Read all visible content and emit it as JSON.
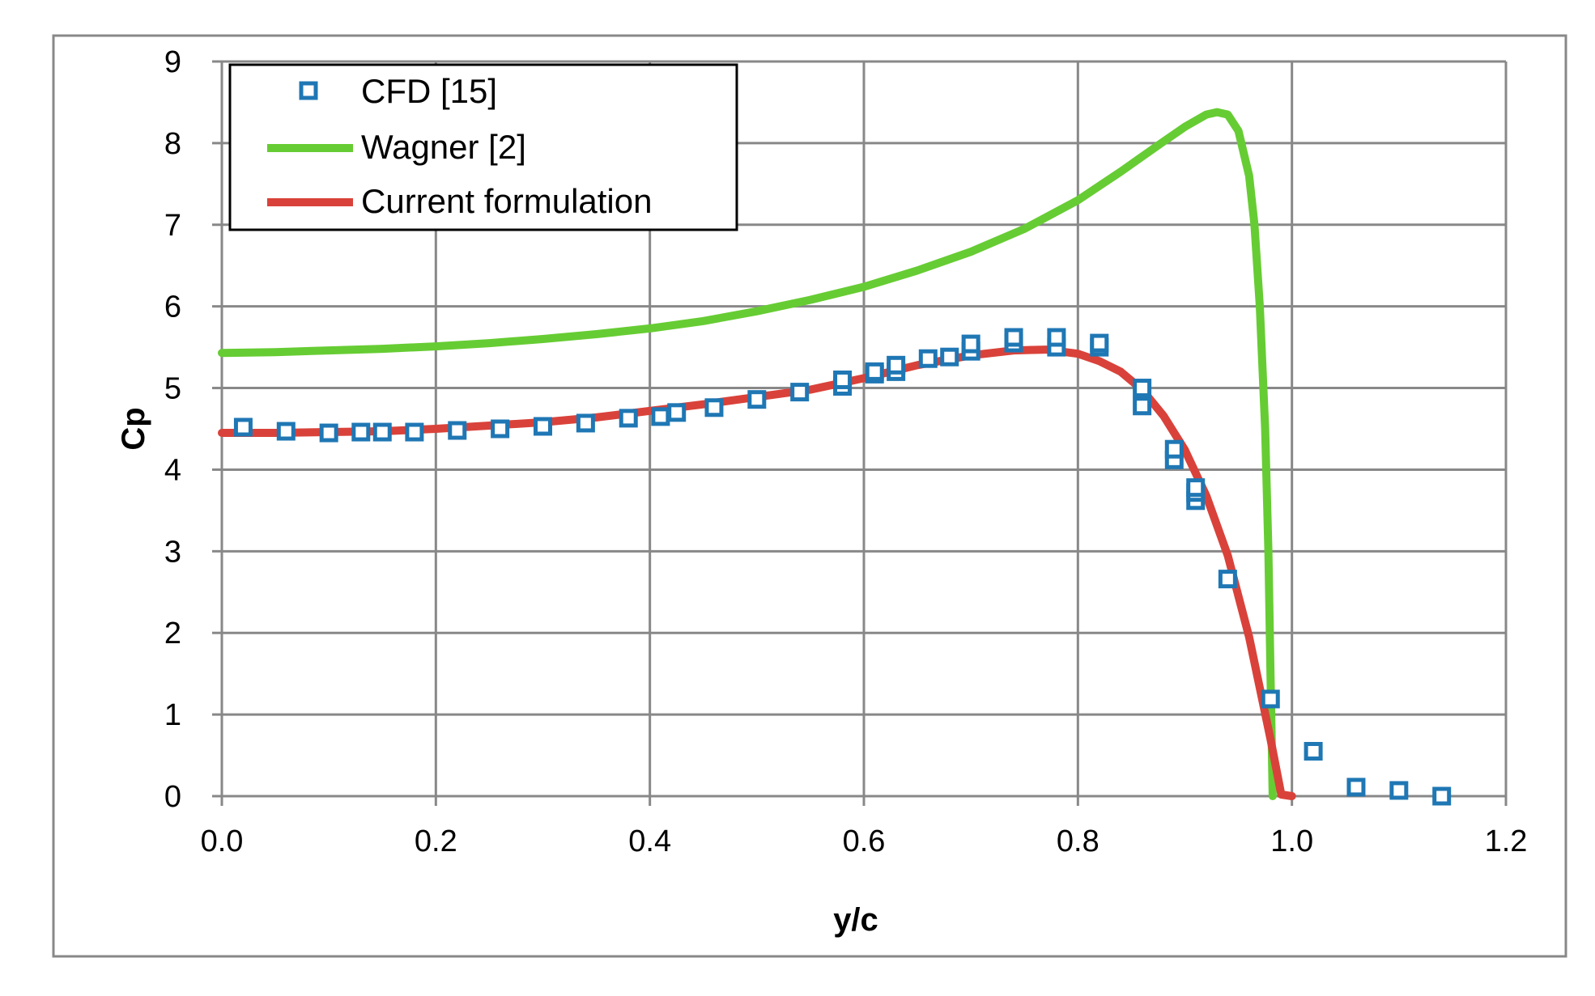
{
  "chart_data": {
    "type": "line",
    "title": "",
    "xlabel": "y/c",
    "ylabel": "Cp",
    "xlim": [
      0,
      1.2
    ],
    "ylim": [
      0,
      9
    ],
    "xticks": [
      "0.0",
      "0.2",
      "0.4",
      "0.6",
      "0.8",
      "1.0",
      "1.2"
    ],
    "yticks": [
      "0",
      "1",
      "2",
      "3",
      "4",
      "5",
      "6",
      "7",
      "8",
      "9"
    ],
    "grid": true,
    "legend_position": "top-left",
    "colors": {
      "cfd": "#1f77b4",
      "wagner": "#66cc33",
      "current": "#d9423a",
      "grid": "#888888",
      "frame": "#888888"
    },
    "series": [
      {
        "name": "CFD [15]",
        "style": "markers-square",
        "x": [
          0.02,
          0.06,
          0.1,
          0.13,
          0.15,
          0.18,
          0.22,
          0.26,
          0.3,
          0.34,
          0.38,
          0.41,
          0.425,
          0.46,
          0.5,
          0.54,
          0.58,
          0.58,
          0.61,
          0.61,
          0.63,
          0.63,
          0.66,
          0.68,
          0.7,
          0.7,
          0.74,
          0.74,
          0.78,
          0.78,
          0.82,
          0.82,
          0.86,
          0.86,
          0.89,
          0.89,
          0.91,
          0.91,
          0.91,
          0.94,
          0.98,
          1.02,
          1.06,
          1.1,
          1.14
        ],
        "y": [
          4.52,
          4.47,
          4.45,
          4.46,
          4.46,
          4.46,
          4.48,
          4.5,
          4.53,
          4.57,
          4.63,
          4.65,
          4.7,
          4.76,
          4.86,
          4.95,
          5.02,
          5.1,
          5.17,
          5.2,
          5.2,
          5.28,
          5.36,
          5.38,
          5.45,
          5.54,
          5.55,
          5.62,
          5.5,
          5.62,
          5.5,
          5.55,
          4.78,
          5.0,
          4.12,
          4.25,
          3.62,
          3.72,
          3.78,
          2.66,
          1.19,
          0.55,
          0.11,
          0.07,
          0.0
        ]
      },
      {
        "name": "Wagner [2]",
        "style": "line",
        "x": [
          0.0,
          0.05,
          0.1,
          0.15,
          0.2,
          0.25,
          0.3,
          0.35,
          0.4,
          0.45,
          0.5,
          0.55,
          0.6,
          0.65,
          0.7,
          0.75,
          0.8,
          0.84,
          0.88,
          0.9,
          0.92,
          0.93,
          0.94,
          0.95,
          0.96,
          0.965,
          0.97,
          0.975,
          0.978,
          0.98,
          0.982
        ],
        "y": [
          5.43,
          5.44,
          5.46,
          5.48,
          5.51,
          5.55,
          5.6,
          5.66,
          5.73,
          5.82,
          5.94,
          6.08,
          6.24,
          6.44,
          6.67,
          6.95,
          7.3,
          7.65,
          8.02,
          8.2,
          8.35,
          8.38,
          8.35,
          8.15,
          7.6,
          7.0,
          6.0,
          4.5,
          3.0,
          1.5,
          0.0
        ]
      },
      {
        "name": "Current formulation",
        "style": "line",
        "x": [
          0.0,
          0.05,
          0.1,
          0.15,
          0.2,
          0.25,
          0.3,
          0.35,
          0.4,
          0.45,
          0.5,
          0.55,
          0.6,
          0.65,
          0.7,
          0.74,
          0.77,
          0.8,
          0.82,
          0.84,
          0.86,
          0.88,
          0.9,
          0.92,
          0.94,
          0.96,
          0.98,
          0.99,
          1.0
        ],
        "y": [
          4.45,
          4.45,
          4.46,
          4.47,
          4.5,
          4.54,
          4.58,
          4.64,
          4.72,
          4.8,
          4.89,
          4.98,
          5.12,
          5.28,
          5.4,
          5.46,
          5.47,
          5.42,
          5.33,
          5.2,
          4.98,
          4.66,
          4.24,
          3.68,
          2.95,
          1.95,
          0.7,
          0.02,
          0.0
        ]
      }
    ]
  }
}
